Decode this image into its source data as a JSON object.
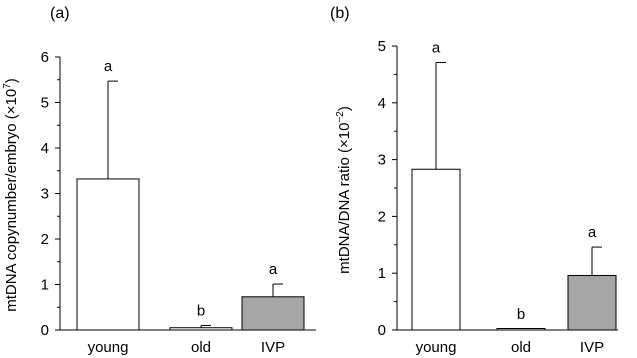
{
  "chart_data": [
    {
      "type": "bar",
      "panel_label": "(a)",
      "ylabel": "mtDNA copynumber/embryo (×10",
      "ylabel_exp": "7",
      "ylabel_close": ")",
      "categories": [
        "young",
        "old",
        "IVP"
      ],
      "values": [
        3.32,
        0.05,
        0.73
      ],
      "errors": [
        2.15,
        0.05,
        0.28
      ],
      "significance": [
        "a",
        "b",
        "a"
      ],
      "bar_colors": [
        "#ffffff",
        "#ffffff",
        "#a6a6a6"
      ],
      "ylim": [
        0,
        6
      ],
      "yticks": [
        "0",
        "1",
        "2",
        "3",
        "4",
        "5",
        "6"
      ]
    },
    {
      "type": "bar",
      "panel_label": "(b)",
      "ylabel": "mtDNA/DNA ratio (×10",
      "ylabel_exp": "−2",
      "ylabel_close": ")",
      "categories": [
        "young",
        "old",
        "IVP"
      ],
      "values": [
        2.83,
        0.02,
        0.96
      ],
      "errors": [
        1.88,
        0.0,
        0.5
      ],
      "significance": [
        "a",
        "b",
        "a"
      ],
      "bar_colors": [
        "#ffffff",
        "#ffffff",
        "#a6a6a6"
      ],
      "ylim": [
        0,
        5
      ],
      "yticks": [
        "0",
        "1",
        "2",
        "3",
        "4",
        "5"
      ]
    }
  ]
}
